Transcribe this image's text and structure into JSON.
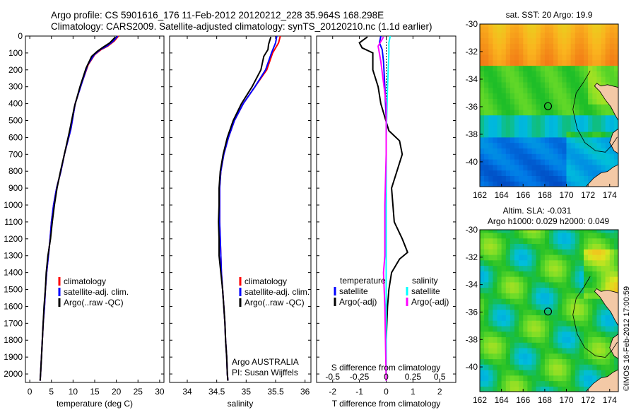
{
  "header": {
    "line1": "Argo profile: CS 5901616_176 11-Feb-2012 20120212_228 35.964S 168.298E",
    "line2": "Climatology: CARS2009. Satellite-adjusted climatology: synTS_20120210.nc (1.1d earlier)"
  },
  "colors": {
    "climatology": "#ff0000",
    "satellite": "#0000ff",
    "argo": "#000000",
    "sal_satellite": "#00ffff",
    "sal_argo": "#ff00ff"
  },
  "credit": "©IMOS 16-Feb-2012 17:00:59",
  "chart_data": [
    {
      "type": "line",
      "xlabel": "temperature (deg C)",
      "ylim": [
        2050,
        0
      ],
      "xlim": [
        -1,
        31
      ],
      "xticks": [
        0,
        5,
        10,
        15,
        20,
        25,
        30
      ],
      "yticks": [
        0,
        100,
        200,
        300,
        400,
        500,
        600,
        700,
        800,
        900,
        1000,
        1100,
        1200,
        1300,
        1400,
        1500,
        1600,
        1700,
        1800,
        1900,
        2000
      ],
      "legend": [
        "climatology",
        "satellite-adj. clim.",
        "Argo(..raw -QC)"
      ],
      "series": [
        {
          "name": "climatology",
          "color": "#ff0000",
          "points": [
            [
              20.5,
              0
            ],
            [
              19.5,
              30
            ],
            [
              18,
              60
            ],
            [
              16.5,
              80
            ],
            [
              15,
              110
            ],
            [
              13.5,
              170
            ],
            [
              12,
              280
            ],
            [
              10.5,
              400
            ],
            [
              9.5,
              550
            ],
            [
              8,
              700
            ],
            [
              7.2,
              800
            ],
            [
              6.2,
              900
            ],
            [
              5.5,
              1000
            ],
            [
              5,
              1100
            ],
            [
              4.7,
              1200
            ],
            [
              4.3,
              1300
            ],
            [
              3.9,
              1400
            ],
            [
              3.6,
              1500
            ],
            [
              3.4,
              1600
            ],
            [
              3.1,
              1700
            ],
            [
              2.9,
              1800
            ],
            [
              2.7,
              1900
            ],
            [
              2.5,
              2000
            ],
            [
              2.4,
              2040
            ]
          ]
        },
        {
          "name": "satellite-adj. clim.",
          "color": "#0000ff",
          "points": [
            [
              20.3,
              0
            ],
            [
              19.3,
              30
            ],
            [
              17.8,
              60
            ],
            [
              16.3,
              80
            ],
            [
              14.9,
              110
            ],
            [
              13.4,
              170
            ],
            [
              12,
              280
            ],
            [
              10.5,
              400
            ],
            [
              9.5,
              550
            ],
            [
              8,
              700
            ],
            [
              7.2,
              800
            ],
            [
              6.2,
              900
            ],
            [
              5.5,
              1000
            ],
            [
              5,
              1100
            ],
            [
              4.7,
              1200
            ],
            [
              4.3,
              1300
            ],
            [
              3.9,
              1400
            ],
            [
              3.6,
              1500
            ],
            [
              3.4,
              1600
            ],
            [
              3.1,
              1700
            ],
            [
              2.9,
              1800
            ],
            [
              2.7,
              1900
            ],
            [
              2.5,
              2000
            ],
            [
              2.4,
              2040
            ]
          ]
        },
        {
          "name": "Argo(..raw -QC)",
          "color": "#000000",
          "points": [
            [
              19.8,
              5
            ],
            [
              18.5,
              40
            ],
            [
              17,
              65
            ],
            [
              15.6,
              90
            ],
            [
              14.3,
              120
            ],
            [
              13,
              190
            ],
            [
              11.6,
              300
            ],
            [
              10.3,
              420
            ],
            [
              9.2,
              560
            ],
            [
              8,
              700
            ],
            [
              7.1,
              800
            ],
            [
              6.3,
              900
            ],
            [
              5.7,
              1000
            ],
            [
              5.2,
              1100
            ],
            [
              4.8,
              1200
            ],
            [
              4.2,
              1300
            ],
            [
              3.8,
              1400
            ],
            [
              3.6,
              1500
            ],
            [
              3.3,
              1600
            ],
            [
              3.1,
              1700
            ],
            [
              2.9,
              1800
            ],
            [
              2.7,
              1900
            ],
            [
              2.5,
              2000
            ],
            [
              2.4,
              2040
            ]
          ]
        }
      ]
    },
    {
      "type": "line",
      "xlabel": "salinity",
      "ylim": [
        2050,
        0
      ],
      "xlim": [
        33.7,
        36.1
      ],
      "xticks": [
        34,
        34.5,
        35,
        35.5,
        36
      ],
      "xticklabels": [
        "34",
        "34.5",
        "35",
        "35.5",
        "36"
      ],
      "legend": [
        "climatology",
        "satellite-adj. clim.",
        "Argo(..raw -QC)"
      ],
      "annotation": [
        "Argo AUSTRALIA",
        "PI: Susan Wijffels"
      ],
      "series": [
        {
          "name": "climatology",
          "color": "#ff0000",
          "points": [
            [
              35.58,
              0
            ],
            [
              35.55,
              40
            ],
            [
              35.45,
              100
            ],
            [
              35.35,
              200
            ],
            [
              35.15,
              300
            ],
            [
              34.95,
              400
            ],
            [
              34.8,
              500
            ],
            [
              34.7,
              600
            ],
            [
              34.62,
              700
            ],
            [
              34.57,
              800
            ],
            [
              34.55,
              900
            ],
            [
              34.55,
              1000
            ],
            [
              34.55,
              1100
            ],
            [
              34.56,
              1200
            ],
            [
              34.57,
              1300
            ],
            [
              34.58,
              1400
            ],
            [
              34.6,
              1500
            ],
            [
              34.62,
              1600
            ],
            [
              34.64,
              1700
            ],
            [
              34.65,
              1800
            ],
            [
              34.67,
              1900
            ],
            [
              34.68,
              2000
            ],
            [
              34.69,
              2040
            ]
          ]
        },
        {
          "name": "satellite-adj. clim.",
          "color": "#0000ff",
          "points": [
            [
              35.52,
              0
            ],
            [
              35.5,
              40
            ],
            [
              35.43,
              100
            ],
            [
              35.33,
              200
            ],
            [
              35.15,
              300
            ],
            [
              34.95,
              400
            ],
            [
              34.8,
              500
            ],
            [
              34.7,
              600
            ],
            [
              34.62,
              700
            ],
            [
              34.57,
              800
            ],
            [
              34.55,
              900
            ],
            [
              34.55,
              1000
            ],
            [
              34.55,
              1100
            ],
            [
              34.56,
              1200
            ],
            [
              34.57,
              1300
            ],
            [
              34.58,
              1400
            ],
            [
              34.6,
              1500
            ],
            [
              34.62,
              1600
            ],
            [
              34.64,
              1700
            ],
            [
              34.65,
              1800
            ],
            [
              34.67,
              1900
            ],
            [
              34.68,
              2000
            ],
            [
              34.69,
              2040
            ]
          ]
        },
        {
          "name": "Argo(..raw -QC)",
          "color": "#000000",
          "points": [
            [
              35.42,
              5
            ],
            [
              35.38,
              50
            ],
            [
              35.37,
              80
            ],
            [
              35.3,
              120
            ],
            [
              35.25,
              200
            ],
            [
              35.1,
              300
            ],
            [
              34.92,
              400
            ],
            [
              34.78,
              500
            ],
            [
              34.68,
              600
            ],
            [
              34.61,
              700
            ],
            [
              34.56,
              800
            ],
            [
              34.54,
              900
            ],
            [
              34.54,
              1000
            ],
            [
              34.53,
              1100
            ],
            [
              34.54,
              1200
            ],
            [
              34.54,
              1300
            ],
            [
              34.57,
              1400
            ],
            [
              34.6,
              1500
            ],
            [
              34.62,
              1600
            ],
            [
              34.64,
              1700
            ],
            [
              34.65,
              1800
            ],
            [
              34.67,
              1900
            ],
            [
              34.68,
              2000
            ],
            [
              34.69,
              2040
            ]
          ]
        }
      ]
    },
    {
      "type": "line",
      "xlabel": "T difference from climatology",
      "xlabel_top": "S difference from climatology",
      "ylim": [
        2050,
        0
      ],
      "xlim": [
        -2.6,
        2.6
      ],
      "xticks": [
        -2,
        -1,
        0,
        1,
        2
      ],
      "top_ticks": [
        {
          "pos": -2,
          "label": "-0.5"
        },
        {
          "pos": -1,
          "label": "-0.25"
        },
        {
          "pos": 0,
          "label": "0"
        },
        {
          "pos": 1,
          "label": "0.25"
        },
        {
          "pos": 2,
          "label": "0.5"
        }
      ],
      "legend_temperature": {
        "title": "temperature",
        "items": [
          "satellite",
          "Argo(-adj)"
        ]
      },
      "legend_salinity": {
        "title": "salinity",
        "items": [
          "satellite",
          "Argo(-adj)"
        ]
      },
      "series": [
        {
          "name": "temperature satellite",
          "color": "#0000ff",
          "points": [
            [
              -0.2,
              0
            ],
            [
              -0.25,
              40
            ],
            [
              -0.15,
              80
            ],
            [
              -0.1,
              150
            ],
            [
              -0.05,
              300
            ],
            [
              0,
              500
            ],
            [
              0,
              1000
            ],
            [
              0,
              1500
            ],
            [
              0,
              2040
            ]
          ]
        },
        {
          "name": "temperature Argo(-adj)",
          "color": "#000000",
          "points": [
            [
              -0.7,
              5
            ],
            [
              -1,
              40
            ],
            [
              -0.9,
              70
            ],
            [
              -0.5,
              100
            ],
            [
              -0.5,
              200
            ],
            [
              -0.3,
              300
            ],
            [
              -0.2,
              400
            ],
            [
              0.1,
              560
            ],
            [
              0.5,
              620
            ],
            [
              0.6,
              700
            ],
            [
              0.4,
              800
            ],
            [
              0.2,
              900
            ],
            [
              0.25,
              1000
            ],
            [
              0.3,
              1100
            ],
            [
              0.6,
              1200
            ],
            [
              0.8,
              1280
            ],
            [
              0.5,
              1320
            ],
            [
              0.2,
              1400
            ],
            [
              0.1,
              1500
            ],
            [
              0.05,
              1600
            ],
            [
              0,
              1800
            ],
            [
              0,
              2040
            ]
          ]
        },
        {
          "name": "salinity satellite",
          "color": "#00ffff",
          "points": [
            [
              0.15,
              0
            ],
            [
              0.1,
              40
            ],
            [
              0.1,
              100
            ],
            [
              0.05,
              300
            ],
            [
              0,
              600
            ],
            [
              0,
              1000
            ],
            [
              0,
              1500
            ],
            [
              0,
              2040
            ]
          ]
        },
        {
          "name": "salinity Argo(-adj)",
          "color": "#ff00ff",
          "points": [
            [
              -0.1,
              5
            ],
            [
              -0.3,
              60
            ],
            [
              -0.2,
              150
            ],
            [
              0,
              400
            ],
            [
              0,
              700
            ],
            [
              -0.05,
              1000
            ],
            [
              -0.05,
              1300
            ],
            [
              -0.1,
              1400
            ],
            [
              -0.05,
              1600
            ],
            [
              0,
              2040
            ]
          ]
        }
      ]
    },
    {
      "type": "heatmap",
      "title": "sat. SST: 20 Argo: 19.9",
      "xlim": [
        162,
        174.8
      ],
      "ylim": [
        -41.8,
        -30
      ],
      "xticks": [
        162,
        164,
        166,
        168,
        170,
        172,
        174
      ],
      "yticks": [
        -30,
        -32,
        -34,
        -36,
        -38,
        -40
      ],
      "argo_position": [
        168.3,
        -35.96
      ]
    },
    {
      "type": "heatmap",
      "title_line1": "Altim. SLA: -0.031",
      "title_line2": "Argo h1000: 0.029 h2000: 0.049",
      "xlim": [
        162,
        174.8
      ],
      "ylim": [
        -41.8,
        -30
      ],
      "xticks": [
        162,
        164,
        166,
        168,
        170,
        172,
        174
      ],
      "yticks": [
        -30,
        -32,
        -34,
        -36,
        -38,
        -40
      ],
      "argo_position": [
        168.3,
        -35.96
      ]
    }
  ]
}
